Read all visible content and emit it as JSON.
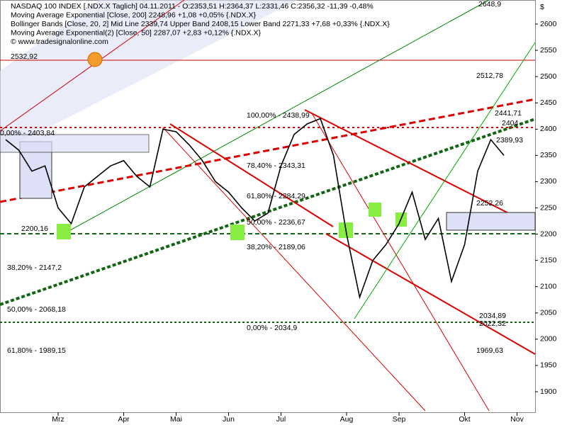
{
  "chart_data": {
    "type": "line",
    "header": [
      "NASDAQ 100 INDEX [.NDX.X  Taglich] 04.11.2011 - O:2353,51 H:2364,37 L:2331,46 C:2356,32 -11,39 -0,48%",
      "Moving Average Exponential [Close, 200] 2248,96 +1,08 +0,05% {.NDX.X}",
      "Bollinger Bands [Close, 20, 2] Mid Line 2339,74 Upper Band 2408,15 Lower Band 2271,33 +7,68 +0,33% {.NDX.X}",
      "Moving Average Exponential(2) [Close, 50] 2287,07 +2,83 +0,12% {.NDX.X}",
      "© www.tradesignalonline.com"
    ],
    "currency_label": "$",
    "categories": [
      null,
      null,
      null,
      null,
      "Mrz",
      null,
      null,
      null,
      null,
      "Apr",
      null,
      null,
      null,
      "Mai",
      null,
      null,
      null,
      "Jun",
      null,
      null,
      null,
      "Jul",
      null,
      null,
      null,
      null,
      "Aug",
      null,
      null,
      null,
      "Sep",
      null,
      null,
      null,
      null,
      "Okt",
      null,
      null,
      null,
      "Nov"
    ],
    "series": [
      {
        "color": "#000000",
        "values": [
          2380,
          2360,
          2320,
          2330,
          2250,
          2220,
          2290,
          2310,
          2330,
          2340,
          2310,
          2290,
          2400,
          2395,
          2370,
          2340,
          2300,
          2280,
          2250,
          2225,
          2240,
          2330,
          2390,
          2410,
          2420,
          2350,
          2200,
          2080,
          2150,
          2180,
          2220,
          2280,
          2190,
          2230,
          2110,
          2180,
          2320,
          2380,
          2350,
          null
        ]
      }
    ],
    "ylim": [
      1880,
      2645
    ],
    "yticks": [
      1900,
      1950,
      2000,
      2050,
      2100,
      2150,
      2200,
      2250,
      2300,
      2350,
      2400,
      2450,
      2500,
      2550,
      2600
    ],
    "annotations": [
      "2532,92",
      "2648,9",
      "2512,78",
      "2441,71",
      "2404",
      "2389,93",
      "2252,26",
      "2034,89",
      "2022,32",
      "1969,63",
      "2200,16",
      "0,00% - 2403,84",
      "38,20% - 2147,2",
      "50,00% - 2068,18",
      "61,80% - 1989,15",
      "100,00% - 2438,99",
      "78,40% - 2343,31",
      "61,80% - 2284,29",
      "50,00% - 2236,67",
      "38,20% - 2189,06",
      "0,00% - 2034,9"
    ]
  }
}
